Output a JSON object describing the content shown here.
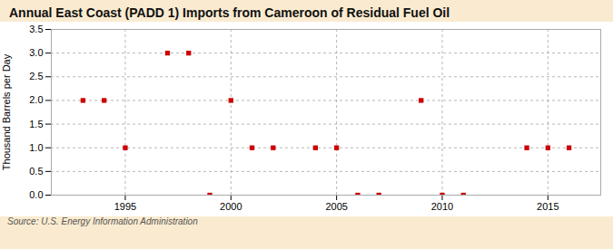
{
  "chart_data": {
    "type": "scatter",
    "title": "Annual East Coast (PADD 1) Imports from Cameroon of Residual Fuel Oil",
    "y_label": "Thousand Barrels per Day",
    "annotations": [
      "Source: U.S. Energy Information Administration"
    ],
    "x": [
      1993,
      1994,
      1995,
      1997,
      1998,
      1999,
      2000,
      2001,
      2002,
      2004,
      2005,
      2006,
      2007,
      2009,
      2010,
      2011,
      2014,
      2015,
      2016
    ],
    "values": [
      2.0,
      2.0,
      1.0,
      3.0,
      3.0,
      0.0,
      2.0,
      1.0,
      1.0,
      1.0,
      1.0,
      0.0,
      0.0,
      2.0,
      0.0,
      0.0,
      1.0,
      1.0,
      1.0
    ],
    "color": "#cc0000",
    "marker": "square",
    "xlim": [
      1991.5,
      2017.5
    ],
    "ylim": [
      0.0,
      3.5
    ],
    "xticks": [
      1995,
      2000,
      2005,
      2010,
      2015
    ],
    "yticks": [
      {
        "value": 0.0,
        "label": "0.0"
      },
      0.5,
      {
        "value": 1.0,
        "label": "1.0"
      },
      1.5,
      {
        "value": 2.0,
        "label": "2.0"
      },
      2.5,
      {
        "value": 3.0,
        "label": "3.0"
      },
      3.5
    ],
    "grid": true
  }
}
